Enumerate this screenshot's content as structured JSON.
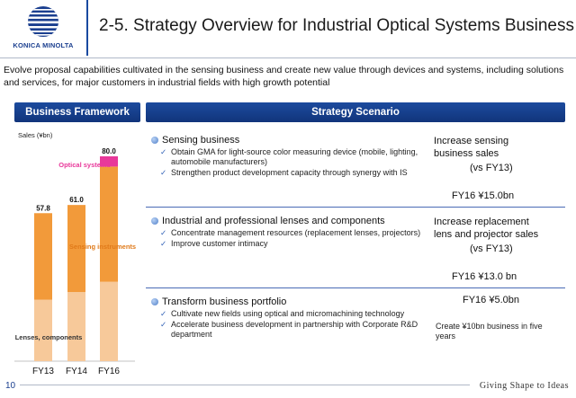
{
  "header": {
    "brand_name": "KONICA MINOLTA",
    "title": "2-5. Strategy Overview for Industrial Optical Systems Business",
    "brand_color": "#1b3f8f"
  },
  "intro": "Evolve proposal capabilities cultivated in the sensing business and create new value through devices and systems, including solutions and services, for major customers in industrial fields with high growth potential",
  "sections": {
    "left_title": "Business Framework",
    "right_title": "Strategy Scenario"
  },
  "chart": {
    "sales_label": "Sales (¥bn)",
    "segment_labels": {
      "optical": "Optical systems",
      "sensing": "Sensing instruments",
      "lenses": "Lenses, components"
    },
    "colors": {
      "optical": "#e8389a",
      "sensing": "#f29a3a",
      "lenses": "#f7c99a"
    }
  },
  "chart_data": {
    "type": "bar",
    "stacked": true,
    "categories": [
      "FY13",
      "FY14",
      "FY16"
    ],
    "totals": [
      57.8,
      61.0,
      80.0
    ],
    "series": [
      {
        "name": "Lenses, components",
        "values": [
          24,
          27,
          31
        ]
      },
      {
        "name": "Sensing instruments",
        "values": [
          33.8,
          34,
          45
        ]
      },
      {
        "name": "Optical systems",
        "values": [
          0,
          0,
          4
        ]
      }
    ],
    "ylim": [
      0,
      80
    ]
  },
  "scenario": [
    {
      "title": "Sensing business",
      "items": [
        "Obtain GMA for light-source color measuring device (mobile, lighting, automobile manufacturers)",
        "Strengthen product development capacity through synergy with IS"
      ],
      "target_line1": "Increase sensing",
      "target_line2": "business sales",
      "target_note": "(vs FY13)",
      "target_value": "FY16 ¥15.0bn"
    },
    {
      "title": "Industrial and professional lenses and components",
      "items": [
        "Concentrate management resources (replacement lenses, projectors)",
        "Improve customer intimacy"
      ],
      "target_line1": "Increase replacement",
      "target_line2": "lens and projector sales",
      "target_note": "(vs FY13)",
      "target_value": "FY16 ¥13.0 bn"
    },
    {
      "title": "Transform business portfolio",
      "items": [
        "Cultivate new fields using optical and micromachining technology",
        "Accelerate business development in partnership with Corporate R&D department"
      ],
      "target_value": "FY16 ¥5.0bn",
      "target_detail": "Create ¥10bn business in five years"
    }
  ],
  "footer": {
    "page_number": "10",
    "slogan": "Giving Shape to Ideas"
  }
}
